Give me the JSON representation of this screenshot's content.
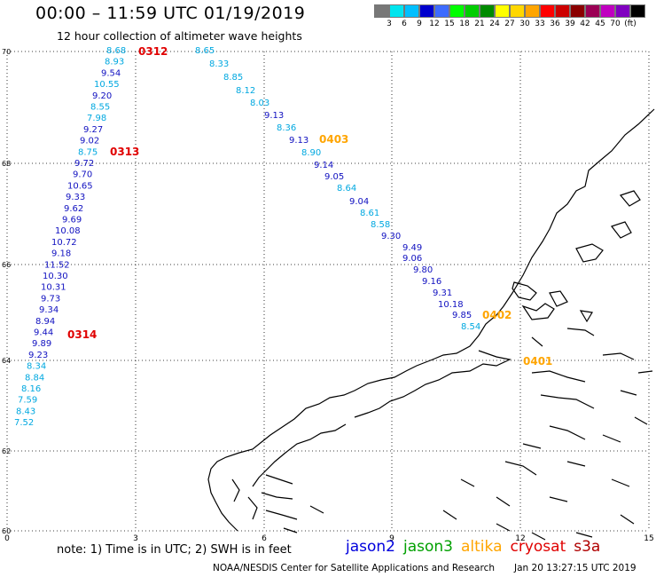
{
  "header": {
    "title": "00:00 – 11:59 UTC 01/19/2019",
    "subtitle": "12 hour collection of altimeter wave heights"
  },
  "legend": {
    "colors": [
      "#777777",
      "#00e5ee",
      "#00bfff",
      "#0000cd",
      "#3d6bff",
      "#00ff00",
      "#00cd00",
      "#008b00",
      "#ffff00",
      "#ffd700",
      "#ffa500",
      "#ff0000",
      "#cd0000",
      "#8b0000",
      "#9b0055",
      "#c000c0",
      "#8000c0",
      "#000000"
    ],
    "labels": [
      "3",
      "6",
      "9",
      "12",
      "15",
      "18",
      "21",
      "24",
      "27",
      "30",
      "33",
      "36",
      "39",
      "42",
      "45",
      "70",
      "(ft)"
    ]
  },
  "axes": {
    "x_ticks": [
      "0",
      "3",
      "6",
      "9",
      "12",
      "15"
    ],
    "y_ticks": [
      "70",
      "68",
      "66",
      "64",
      "62",
      "60"
    ]
  },
  "track_labels": [
    {
      "text": "0312",
      "color": "#e00000"
    },
    {
      "text": "0313",
      "color": "#e00000"
    },
    {
      "text": "0314",
      "color": "#e00000"
    },
    {
      "text": "0403",
      "color": "#ffa500"
    },
    {
      "text": "0402",
      "color": "#ffa500"
    },
    {
      "text": "0401",
      "color": "#ffa500"
    }
  ],
  "wave_heights": {
    "track_1": [
      "8.68",
      "8.93",
      "9.54",
      "10.55",
      "9.20",
      "8.55",
      "7.98",
      "9.27",
      "9.02",
      "8.75",
      "9.72",
      "9.70",
      "10.65",
      "9.33",
      "9.62",
      "9.69",
      "10.08",
      "10.72",
      "9.18",
      "11.52",
      "10.30",
      "10.31",
      "9.73",
      "9.34",
      "8.94",
      "9.44",
      "9.89",
      "9.23",
      "8.34",
      "8.84",
      "8.16",
      "7.59",
      "8.43",
      "7.52"
    ],
    "track_2": [
      "8.65",
      "8.33",
      "8.85",
      "8.12",
      "8.03",
      "9.13",
      "8.36",
      "9.13",
      "8.90",
      "9.14",
      "9.05",
      "8.64",
      "9.04",
      "8.61",
      "8.58",
      "9.30",
      "9.49",
      "9.06",
      "9.80",
      "9.16",
      "9.31",
      "10.18",
      "9.85",
      "8.54"
    ]
  },
  "footer": {
    "note": "note:  1) Time is in UTC;  2) SWH is in feet",
    "satellites": [
      {
        "name": "jason2",
        "color": "#0000dd"
      },
      {
        "name": "jason3",
        "color": "#00a000"
      },
      {
        "name": "altika",
        "color": "#ffa500"
      },
      {
        "name": "cryosat",
        "color": "#e00000"
      },
      {
        "name": "s3a",
        "color": "#b00000"
      }
    ],
    "credit": "NOAA/NESDIS Center for Satellite Applications and Research",
    "timestamp": "Jan 20 13:27:15 UTC 2019"
  }
}
